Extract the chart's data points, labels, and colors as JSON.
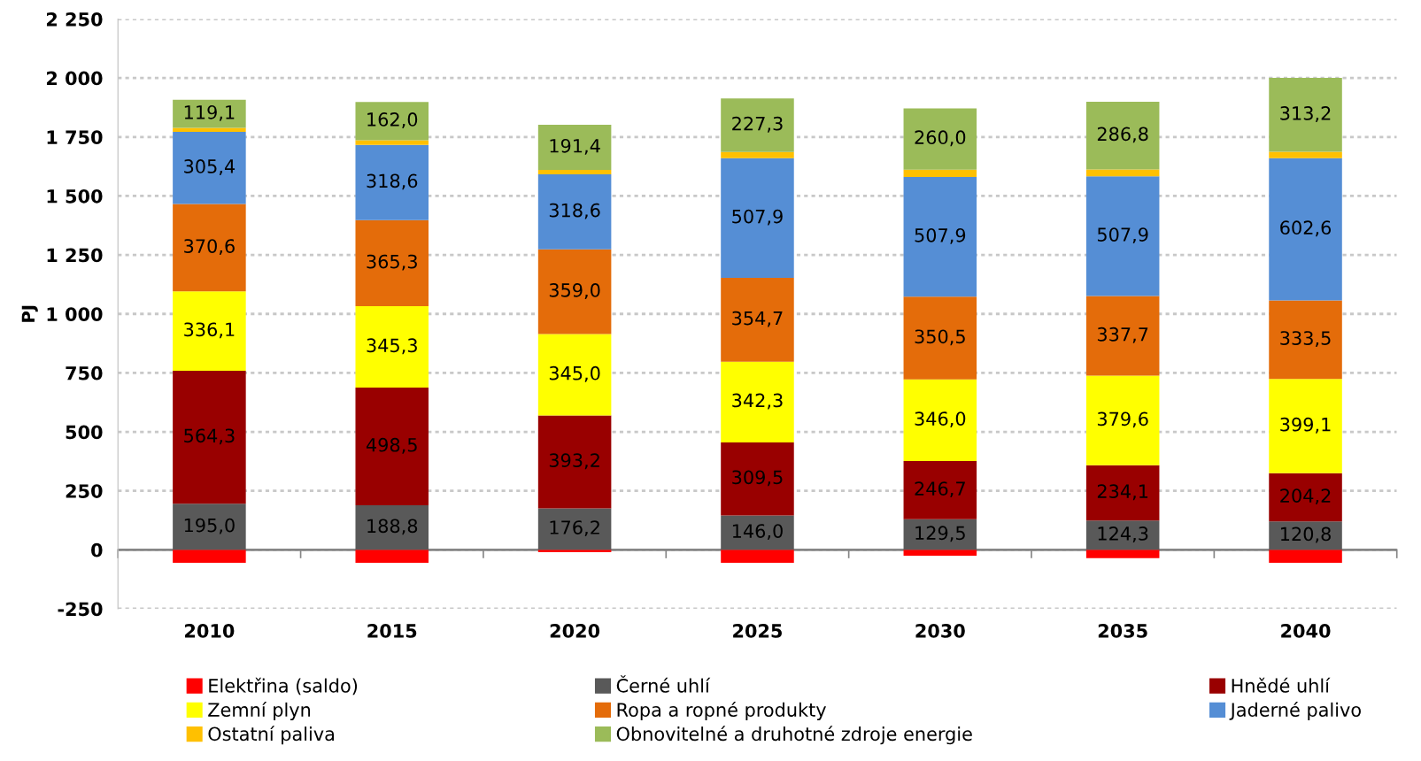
{
  "chart_data": {
    "type": "bar",
    "stacked": true,
    "ylabel": "PJ",
    "categories": [
      "2010",
      "2015",
      "2020",
      "2025",
      "2030",
      "2035",
      "2040"
    ],
    "ylim": [
      -250,
      2250
    ],
    "yticks": [
      {
        "value": -250,
        "label": "-250"
      },
      0,
      250,
      500,
      750,
      {
        "value": 1000,
        "label": "1 000"
      },
      {
        "value": 1250,
        "label": "1 250"
      },
      {
        "value": 1500,
        "label": "1 500"
      },
      {
        "value": 1750,
        "label": "1 750"
      },
      {
        "value": 2000,
        "label": "2 000"
      },
      {
        "value": 2250,
        "label": "2 250"
      }
    ],
    "grid": "y",
    "legend": "bottom",
    "series": [
      {
        "name": "Elektřina (saldo)",
        "color": "#ff0000",
        "values": [
          -55,
          -55,
          -10,
          -55,
          -25,
          -35,
          -55
        ]
      },
      {
        "name": "Černé uhlí",
        "color": "#595959",
        "values": [
          195.0,
          188.8,
          176.2,
          146.0,
          129.5,
          124.3,
          120.8
        ],
        "value_labels": [
          "195,0",
          "188,8",
          "176,2",
          "146,0",
          "129,5",
          "124,3",
          "120,8"
        ]
      },
      {
        "name": "Hnědé uhlí",
        "color": "#990000",
        "values": [
          564.3,
          498.5,
          393.2,
          309.5,
          246.7,
          234.1,
          204.2
        ],
        "value_labels": [
          "564,3",
          "498,5",
          "393,2",
          "309,5",
          "246,7",
          "234,1",
          "204,2"
        ]
      },
      {
        "name": "Zemní plyn",
        "color": "#ffff00",
        "values": [
          336.1,
          345.3,
          345.0,
          342.3,
          346.0,
          379.6,
          399.1
        ],
        "value_labels": [
          "336,1",
          "345,3",
          "345,0",
          "342,3",
          "346,0",
          "379,6",
          "399,1"
        ]
      },
      {
        "name": "Ropa a ropné produkty",
        "color": "#e46c0a",
        "values": [
          370.6,
          365.3,
          359.0,
          354.7,
          350.5,
          337.7,
          333.5
        ],
        "value_labels": [
          "370,6",
          "365,3",
          "359,0",
          "354,7",
          "350,5",
          "337,7",
          "333,5"
        ]
      },
      {
        "name": "Jaderné palivo",
        "color": "#558ed5",
        "values": [
          305.4,
          318.6,
          318.6,
          507.9,
          507.9,
          507.9,
          602.6
        ],
        "value_labels": [
          "305,4",
          "318,6",
          "318,6",
          "507,9",
          "507,9",
          "507,9",
          "602,6"
        ]
      },
      {
        "name": "Ostatní paliva",
        "color": "#ffc000",
        "values": [
          17,
          20,
          18,
          26,
          31,
          29,
          27
        ]
      },
      {
        "name": "Obnovitelné a druhotné zdroje energie",
        "color": "#9bbb59",
        "values": [
          119.1,
          162.0,
          191.4,
          227.3,
          260.0,
          286.8,
          313.2
        ],
        "value_labels": [
          "119,1",
          "162,0",
          "191,4",
          "227,3",
          "260,0",
          "286,8",
          "313,2"
        ]
      }
    ]
  }
}
